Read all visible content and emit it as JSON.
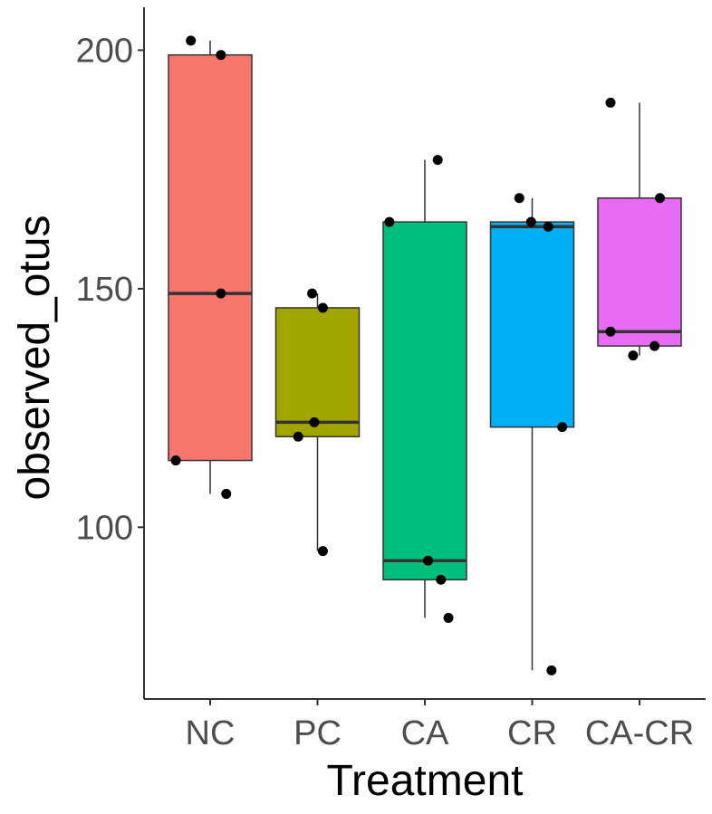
{
  "chart_data": {
    "type": "box",
    "xlabel": "Treatment",
    "ylabel": "observed_otus",
    "categories": [
      "NC",
      "PC",
      "CA",
      "CR",
      "CA-CR"
    ],
    "y_ticks": [
      100,
      150,
      200
    ],
    "ylim": [
      64,
      209
    ],
    "grid": false,
    "legend": "none",
    "boxes": [
      {
        "category": "NC",
        "color": "#F8766D",
        "whisker_low": 107,
        "q1": 114,
        "median": 149,
        "q3": 199,
        "whisker_high": 202
      },
      {
        "category": "PC",
        "color": "#A3A500",
        "whisker_low": 95,
        "q1": 119,
        "median": 122,
        "q3": 146,
        "whisker_high": 149
      },
      {
        "category": "CA",
        "color": "#00BF7D",
        "whisker_low": 81,
        "q1": 89,
        "median": 93,
        "q3": 164,
        "whisker_high": 177
      },
      {
        "category": "CR",
        "color": "#00B0F6",
        "whisker_low": 70,
        "q1": 121,
        "median": 163,
        "q3": 164,
        "whisker_high": 169
      },
      {
        "category": "CA-CR",
        "color": "#E76BF3",
        "whisker_low": 136,
        "q1": 138,
        "median": 141,
        "q3": 169,
        "whisker_high": 189
      }
    ],
    "points": [
      {
        "category": "NC",
        "jitter": -0.32,
        "y": 114
      },
      {
        "category": "NC",
        "jitter": -0.18,
        "y": 202
      },
      {
        "category": "NC",
        "jitter": 0.1,
        "y": 199
      },
      {
        "category": "NC",
        "jitter": 0.1,
        "y": 149
      },
      {
        "category": "NC",
        "jitter": 0.15,
        "y": 107
      },
      {
        "category": "PC",
        "jitter": -0.05,
        "y": 149
      },
      {
        "category": "PC",
        "jitter": -0.18,
        "y": 119
      },
      {
        "category": "PC",
        "jitter": -0.03,
        "y": 122
      },
      {
        "category": "PC",
        "jitter": 0.05,
        "y": 146
      },
      {
        "category": "PC",
        "jitter": 0.05,
        "y": 95
      },
      {
        "category": "CA",
        "jitter": -0.33,
        "y": 164
      },
      {
        "category": "CA",
        "jitter": 0.12,
        "y": 177
      },
      {
        "category": "CA",
        "jitter": 0.03,
        "y": 93
      },
      {
        "category": "CA",
        "jitter": 0.15,
        "y": 89
      },
      {
        "category": "CA",
        "jitter": 0.22,
        "y": 81
      },
      {
        "category": "CR",
        "jitter": -0.12,
        "y": 169
      },
      {
        "category": "CR",
        "jitter": -0.01,
        "y": 164
      },
      {
        "category": "CR",
        "jitter": 0.15,
        "y": 163
      },
      {
        "category": "CR",
        "jitter": 0.28,
        "y": 121
      },
      {
        "category": "CR",
        "jitter": 0.18,
        "y": 70
      },
      {
        "category": "CA-CR",
        "jitter": -0.27,
        "y": 189
      },
      {
        "category": "CA-CR",
        "jitter": 0.19,
        "y": 169
      },
      {
        "category": "CA-CR",
        "jitter": -0.27,
        "y": 141
      },
      {
        "category": "CA-CR",
        "jitter": -0.06,
        "y": 136
      },
      {
        "category": "CA-CR",
        "jitter": 0.14,
        "y": 138
      }
    ]
  }
}
